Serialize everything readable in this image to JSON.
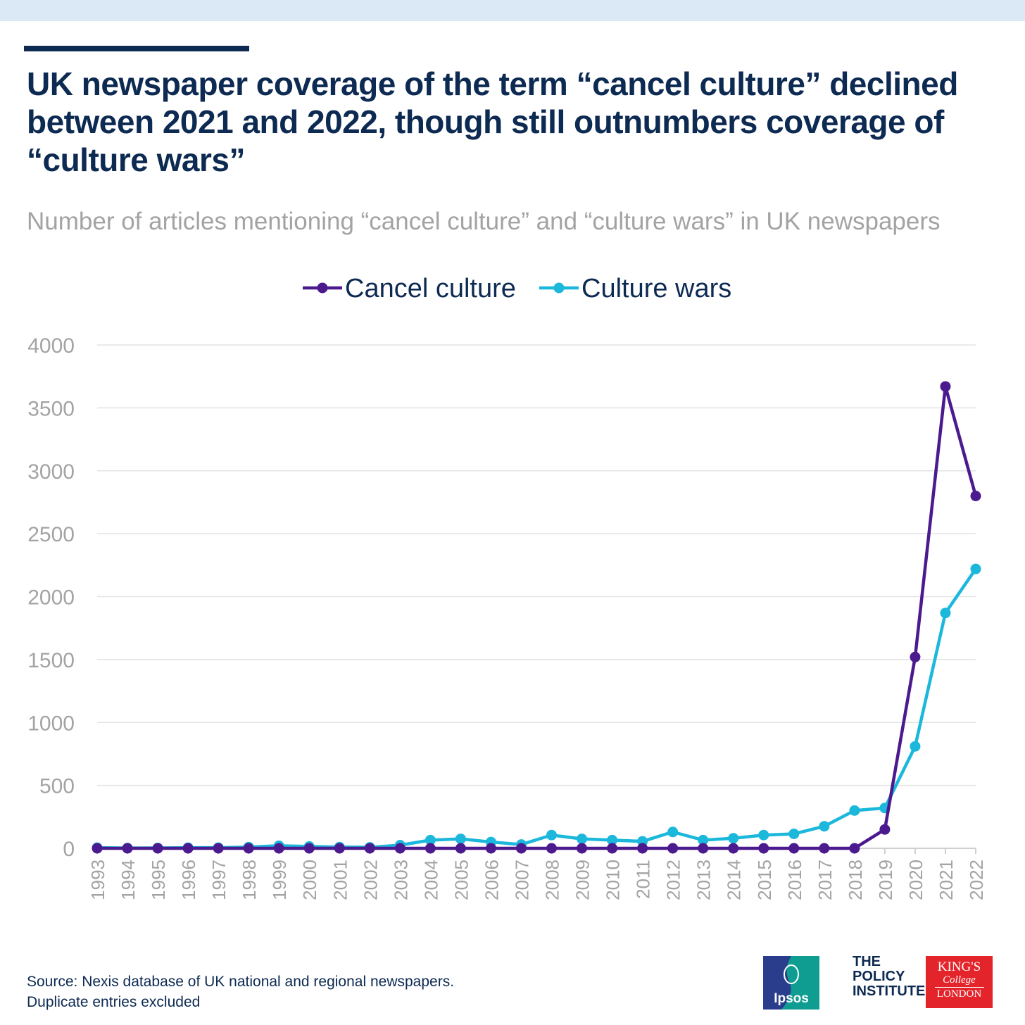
{
  "title": "UK newspaper coverage of the term “cancel culture” declined between 2021 and 2022, though still outnumbers coverage of “culture wars”",
  "subtitle": "Number of articles mentioning “cancel culture” and “culture wars” in UK newspapers",
  "footer": {
    "source_line1": "Source: Nexis database of UK national and regional newspapers.",
    "source_line2": "Duplicate entries excluded"
  },
  "logos": {
    "ipsos": "Ipsos",
    "policy_line1": "THE",
    "policy_line2": "POLICY",
    "policy_line3": "INSTITUTE",
    "kings_line1": "KING'S",
    "kings_line2": "College",
    "kings_line3": "LONDON"
  },
  "colors": {
    "title": "#0d2a52",
    "cancel_culture": "#4b1a8e",
    "culture_wars": "#1bb8dc",
    "axis_text": "#a3a3a3",
    "grid": "#e3e3e3"
  },
  "chart_data": {
    "type": "line",
    "title": "Number of articles mentioning “cancel culture” and “culture wars” in UK newspapers",
    "xlabel": "",
    "ylabel": "",
    "ylim": [
      0,
      4000
    ],
    "yticks": [
      0,
      500,
      1000,
      1500,
      2000,
      2500,
      3000,
      3500,
      4000
    ],
    "grid": true,
    "legend_position": "top-center",
    "x": [
      "1993",
      "1994",
      "1995",
      "1996",
      "1997",
      "1998",
      "1999",
      "2000",
      "2001",
      "2002",
      "2003",
      "2004",
      "2005",
      "2006",
      "2007",
      "2008",
      "2009",
      "2010",
      "2011",
      "2012",
      "2013",
      "2014",
      "2015",
      "2016",
      "2017",
      "2018",
      "2019",
      "2020",
      "2021",
      "2022"
    ],
    "series": [
      {
        "name": "Cancel culture",
        "color": "#4b1a8e",
        "values": [
          0,
          0,
          0,
          0,
          0,
          0,
          0,
          0,
          0,
          0,
          0,
          0,
          0,
          0,
          0,
          0,
          0,
          0,
          0,
          0,
          0,
          0,
          0,
          0,
          0,
          0,
          150,
          1520,
          3670,
          2800
        ]
      },
      {
        "name": "Culture wars",
        "color": "#1bb8dc",
        "values": [
          5,
          2,
          3,
          5,
          5,
          10,
          20,
          15,
          10,
          8,
          25,
          65,
          75,
          50,
          30,
          105,
          75,
          65,
          55,
          130,
          65,
          80,
          105,
          115,
          175,
          300,
          320,
          810,
          1870,
          2220
        ]
      }
    ]
  }
}
